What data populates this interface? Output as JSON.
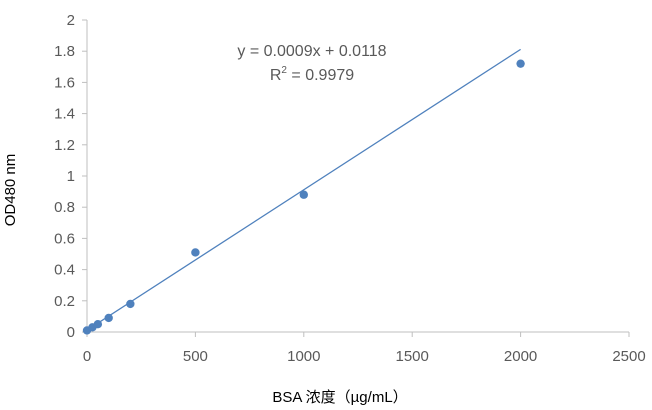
{
  "chart_data": {
    "type": "scatter",
    "title": "",
    "xlabel": "BSA 浓度（µg/mL）",
    "ylabel": "OD480 nm",
    "xlim": [
      0,
      2500
    ],
    "ylim": [
      0,
      2
    ],
    "x_ticks": [
      "0",
      "500",
      "1000",
      "1500",
      "2000",
      "2500"
    ],
    "y_ticks": [
      "0",
      "0.2",
      "0.4",
      "0.6",
      "0.8",
      "1",
      "1.2",
      "1.4",
      "1.6",
      "1.8",
      "2"
    ],
    "grid": false,
    "legend": "none",
    "series": [
      {
        "x": [
          0,
          25,
          50,
          100,
          200,
          500,
          1000,
          2000
        ],
        "y": [
          0.01,
          0.03,
          0.05,
          0.09,
          0.18,
          0.51,
          0.88,
          1.72
        ]
      }
    ],
    "trendline": {
      "slope": 0.0009,
      "intercept": 0.0118,
      "x_range": [
        0,
        2000
      ]
    },
    "annotations": {
      "equation": "y = 0.0009x + 0.0118",
      "r2_prefix": "R",
      "r2_sup": "2",
      "r2_value": " = 0.9979"
    },
    "colors": {
      "marker": "#4f81bd",
      "line": "#4f81bd",
      "axis": "#bfbfbf"
    }
  }
}
